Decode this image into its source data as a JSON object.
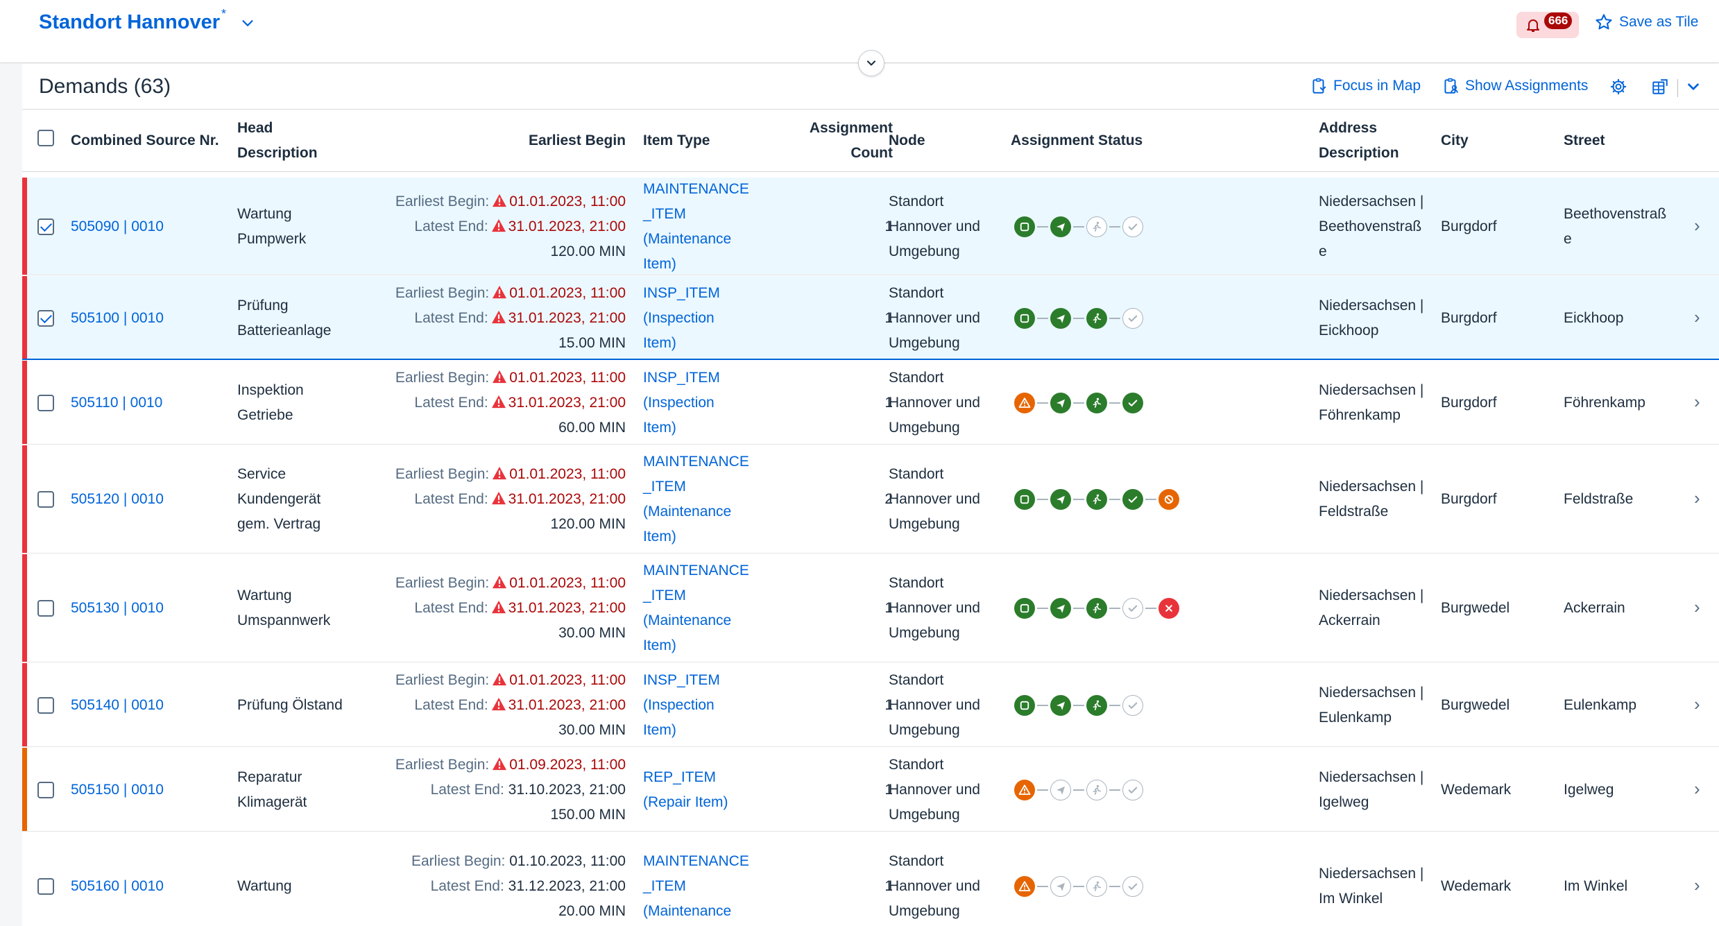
{
  "header": {
    "variant_title": "Standort Hannover",
    "variant_modified": "*",
    "notification_count": "666",
    "save_tile_label": "Save as Tile"
  },
  "toolbar": {
    "title": "Demands (63)",
    "focus_map_label": "Focus in Map",
    "show_assignments_label": "Show Assignments"
  },
  "columns": {
    "source_nr": "Combined Source Nr.",
    "head_desc_1": "Head",
    "head_desc_2": "Description",
    "earliest_begin": "Earliest Begin",
    "item_type": "Item Type",
    "assign_count_1": "Assignment",
    "assign_count_2": "Count",
    "node": "Node",
    "assign_status": "Assignment Status",
    "address_1": "Address",
    "address_2": "Description",
    "city": "City",
    "street": "Street"
  },
  "labels": {
    "earliest_begin": "Earliest Begin:",
    "latest_end": "Latest End:"
  },
  "colors": {
    "highlight_error": "#e9333b",
    "highlight_warning": "#e76500",
    "link": "#0064d9",
    "critical_text": "#aa0808"
  },
  "rows": [
    {
      "source": "505090 | 0010",
      "desc": [
        "Wartung",
        "Pumpwerk"
      ],
      "begin": "01.01.2023, 11:00",
      "end": "31.01.2023, 21:00",
      "duration": "120.00 MIN",
      "item_type": [
        "MAINTENANCE",
        "_ITEM",
        "(Maintenance",
        "Item)"
      ],
      "count": "1",
      "node": [
        "Standort",
        "Hannover und",
        "Umgebung"
      ],
      "address": [
        "Niedersachsen |",
        "Beethovenstraß",
        "e"
      ],
      "city": "Burgdorf",
      "street": [
        "Beethovenstraß",
        "e"
      ]
    },
    {
      "source": "505100 | 0010",
      "desc": [
        "Prüfung",
        "Batterieanlage"
      ],
      "begin": "01.01.2023, 11:00",
      "end": "31.01.2023, 21:00",
      "duration": "15.00 MIN",
      "item_type": [
        "INSP_ITEM",
        "(Inspection",
        "Item)"
      ],
      "count": "1",
      "node": [
        "Standort",
        "Hannover und",
        "Umgebung"
      ],
      "address": [
        "Niedersachsen |",
        "Eickhoop"
      ],
      "city": "Burgdorf",
      "street": [
        "Eickhoop"
      ]
    },
    {
      "source": "505110 | 0010",
      "desc": [
        "Inspektion",
        "Getriebe"
      ],
      "begin": "01.01.2023, 11:00",
      "end": "31.01.2023, 21:00",
      "duration": "60.00 MIN",
      "item_type": [
        "INSP_ITEM",
        "(Inspection",
        "Item)"
      ],
      "count": "1",
      "node": [
        "Standort",
        "Hannover und",
        "Umgebung"
      ],
      "address": [
        "Niedersachsen |",
        "Föhrenkamp"
      ],
      "city": "Burgdorf",
      "street": [
        "Föhrenkamp"
      ]
    },
    {
      "source": "505120 | 0010",
      "desc": [
        "Service",
        "Kundengerät",
        "gem. Vertrag"
      ],
      "begin": "01.01.2023, 11:00",
      "end": "31.01.2023, 21:00",
      "duration": "120.00 MIN",
      "item_type": [
        "MAINTENANCE",
        "_ITEM",
        "(Maintenance",
        "Item)"
      ],
      "count": "2",
      "node": [
        "Standort",
        "Hannover und",
        "Umgebung"
      ],
      "address": [
        "Niedersachsen |",
        "Feldstraße"
      ],
      "city": "Burgdorf",
      "street": [
        "Feldstraße"
      ]
    },
    {
      "source": "505130 | 0010",
      "desc": [
        "Wartung",
        "Umspannwerk"
      ],
      "begin": "01.01.2023, 11:00",
      "end": "31.01.2023, 21:00",
      "duration": "30.00 MIN",
      "item_type": [
        "MAINTENANCE",
        "_ITEM",
        "(Maintenance",
        "Item)"
      ],
      "count": "1",
      "node": [
        "Standort",
        "Hannover und",
        "Umgebung"
      ],
      "address": [
        "Niedersachsen |",
        "Ackerrain"
      ],
      "city": "Burgwedel",
      "street": [
        "Ackerrain"
      ]
    },
    {
      "source": "505140 | 0010",
      "desc": [
        "Prüfung Ölstand"
      ],
      "begin": "01.01.2023, 11:00",
      "end": "31.01.2023, 21:00",
      "duration": "30.00 MIN",
      "item_type": [
        "INSP_ITEM",
        "(Inspection",
        "Item)"
      ],
      "count": "1",
      "node": [
        "Standort",
        "Hannover und",
        "Umgebung"
      ],
      "address": [
        "Niedersachsen |",
        "Eulenkamp"
      ],
      "city": "Burgwedel",
      "street": [
        "Eulenkamp"
      ]
    },
    {
      "source": "505150 | 0010",
      "desc": [
        "Reparatur",
        "Klimagerät"
      ],
      "begin": "01.09.2023, 11:00",
      "end": "31.10.2023, 21:00",
      "duration": "150.00 MIN",
      "item_type": [
        "REP_ITEM",
        "(Repair Item)"
      ],
      "count": "1",
      "node": [
        "Standort",
        "Hannover und",
        "Umgebung"
      ],
      "address": [
        "Niedersachsen |",
        "Igelweg"
      ],
      "city": "Wedemark",
      "street": [
        "Igelweg"
      ]
    },
    {
      "source": "505160 | 0010",
      "desc": [
        "Wartung"
      ],
      "begin": "01.10.2023, 11:00",
      "end": "31.12.2023, 21:00",
      "duration": "20.00 MIN",
      "item_type": [
        "MAINTENANCE",
        "_ITEM",
        "(Maintenance"
      ],
      "count": "1",
      "node": [
        "Standort",
        "Hannover und",
        "Umgebung"
      ],
      "address": [
        "Niedersachsen |",
        "Im Winkel"
      ],
      "city": "Wedemark",
      "street": [
        "Im Winkel"
      ]
    }
  ]
}
